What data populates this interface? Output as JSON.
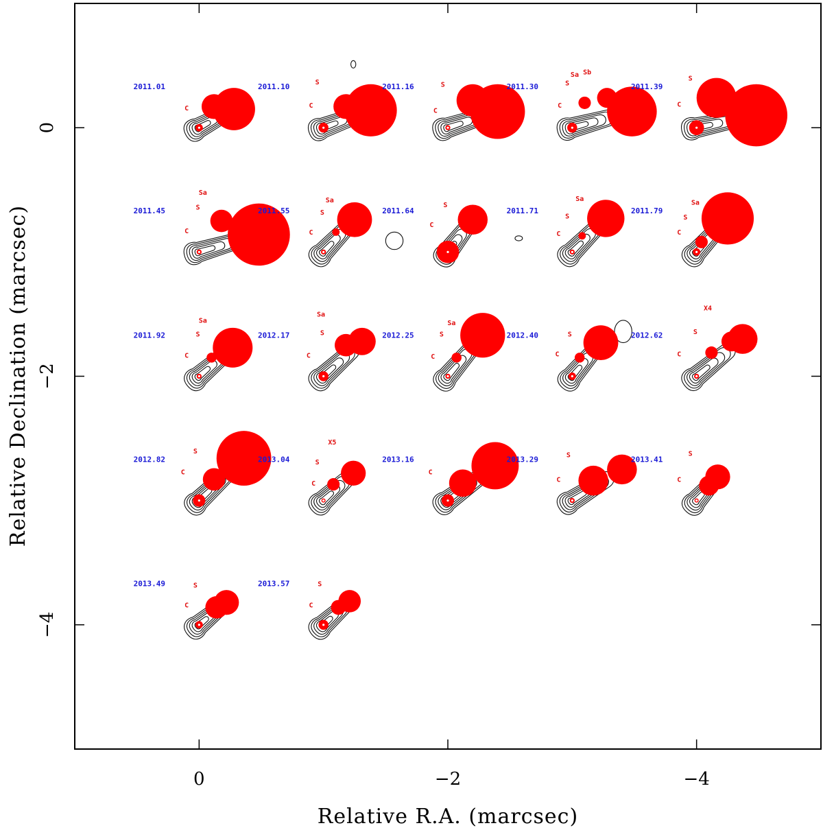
{
  "chart_data": {
    "type": "scatter",
    "title": "",
    "xlabel": "Relative R.A. (marcsec)",
    "ylabel": "Relative Declination (marcsec)",
    "xlim": [
      1.0,
      -5.0
    ],
    "ylim": [
      -5.0,
      1.0
    ],
    "xticks": [
      0,
      -2,
      -4
    ],
    "xtick_labels": [
      "0",
      "−2",
      "−4"
    ],
    "yticks": [
      0,
      -2,
      -4
    ],
    "ytick_labels": [
      "0",
      "−2",
      "−4"
    ],
    "grid": false,
    "contour_color": "#111111",
    "component_color": "#ff0000",
    "epoch_label_color": "#1a1ad6",
    "component_label_color": "#e01010",
    "epochs": [
      {
        "epoch": "2011.01",
        "x0": 0.0,
        "y0": 0.0,
        "components": [
          {
            "x": 0.0,
            "y": 0.0,
            "r": 0.03
          },
          {
            "x": -0.12,
            "y": 0.17,
            "r": 0.1
          },
          {
            "x": -0.28,
            "y": 0.15,
            "r": 0.17
          }
        ],
        "labels": [
          {
            "text": "C",
            "x": 0.1,
            "y": 0.14
          }
        ],
        "blobs": []
      },
      {
        "epoch": "2011.10",
        "x0": -1.0,
        "y0": 0.0,
        "components": [
          {
            "x": -1.0,
            "y": 0.0,
            "r": 0.04
          },
          {
            "x": -1.18,
            "y": 0.17,
            "r": 0.1
          },
          {
            "x": -1.38,
            "y": 0.14,
            "r": 0.21
          }
        ],
        "labels": [
          {
            "text": "S",
            "x": -0.95,
            "y": 0.35
          },
          {
            "text": "C",
            "x": -0.9,
            "y": 0.16
          }
        ],
        "blobs": [
          {
            "x": -1.24,
            "y": 0.51,
            "rx": 0.02,
            "ry": 0.03
          }
        ]
      },
      {
        "epoch": "2011.16",
        "x0": -2.0,
        "y0": 0.0,
        "components": [
          {
            "x": -2.0,
            "y": 0.0,
            "r": 0.02
          },
          {
            "x": -2.2,
            "y": 0.22,
            "r": 0.13
          },
          {
            "x": -2.4,
            "y": 0.13,
            "r": 0.22
          }
        ],
        "labels": [
          {
            "text": "S",
            "x": -1.96,
            "y": 0.33
          },
          {
            "text": "C",
            "x": -1.9,
            "y": 0.12
          }
        ],
        "blobs": []
      },
      {
        "epoch": "2011.30",
        "x0": -3.0,
        "y0": 0.0,
        "components": [
          {
            "x": -3.0,
            "y": 0.0,
            "r": 0.04
          },
          {
            "x": -3.1,
            "y": 0.2,
            "r": 0.05
          },
          {
            "x": -3.28,
            "y": 0.24,
            "r": 0.08
          },
          {
            "x": -3.48,
            "y": 0.13,
            "r": 0.2
          }
        ],
        "labels": [
          {
            "text": "Sa",
            "x": -3.02,
            "y": 0.41
          },
          {
            "text": "Sb",
            "x": -3.12,
            "y": 0.43
          },
          {
            "text": "S",
            "x": -2.96,
            "y": 0.34
          },
          {
            "text": "C",
            "x": -2.9,
            "y": 0.16
          }
        ],
        "blobs": []
      },
      {
        "epoch": "2011.39",
        "x0": -4.0,
        "y0": 0.0,
        "components": [
          {
            "x": -4.0,
            "y": 0.0,
            "r": 0.06
          },
          {
            "x": -4.16,
            "y": 0.24,
            "r": 0.16
          },
          {
            "x": -4.48,
            "y": 0.1,
            "r": 0.25
          }
        ],
        "labels": [
          {
            "text": "S",
            "x": -3.95,
            "y": 0.38
          },
          {
            "text": "C",
            "x": -3.86,
            "y": 0.17
          }
        ],
        "blobs": []
      },
      {
        "epoch": "2011.45",
        "x0": 0.0,
        "y0": -1.0,
        "components": [
          {
            "x": 0.0,
            "y": -1.0,
            "r": 0.02
          },
          {
            "x": -0.18,
            "y": -0.75,
            "r": 0.09
          },
          {
            "x": -0.48,
            "y": -0.86,
            "r": 0.25
          }
        ],
        "labels": [
          {
            "text": "Sa",
            "x": -0.03,
            "y": -0.54
          },
          {
            "text": "S",
            "x": 0.01,
            "y": -0.66
          },
          {
            "text": "C",
            "x": 0.1,
            "y": -0.85
          }
        ],
        "blobs": []
      },
      {
        "epoch": "2011.55",
        "x0": -1.0,
        "y0": -1.0,
        "components": [
          {
            "x": -1.0,
            "y": -1.0,
            "r": 0.02
          },
          {
            "x": -1.1,
            "y": -0.84,
            "r": 0.03
          },
          {
            "x": -1.25,
            "y": -0.74,
            "r": 0.14
          }
        ],
        "labels": [
          {
            "text": "Sa",
            "x": -1.05,
            "y": -0.6
          },
          {
            "text": "S",
            "x": -0.99,
            "y": -0.7
          },
          {
            "text": "C",
            "x": -0.9,
            "y": -0.86
          }
        ],
        "blobs": [
          {
            "x": -1.57,
            "y": -0.91,
            "rx": 0.07,
            "ry": 0.07
          }
        ]
      },
      {
        "epoch": "2011.64",
        "x0": -2.0,
        "y0": -1.0,
        "components": [
          {
            "x": -2.0,
            "y": -1.0,
            "r": 0.09
          },
          {
            "x": -2.2,
            "y": -0.74,
            "r": 0.12
          }
        ],
        "labels": [
          {
            "text": "S",
            "x": -1.98,
            "y": -0.64
          },
          {
            "text": "C",
            "x": -1.87,
            "y": -0.8
          }
        ],
        "blobs": [
          {
            "x": -2.57,
            "y": -0.89,
            "rx": 0.03,
            "ry": 0.02
          }
        ]
      },
      {
        "epoch": "2011.71",
        "x0": -3.0,
        "y0": -1.0,
        "components": [
          {
            "x": -3.0,
            "y": -1.0,
            "r": 0.02
          },
          {
            "x": -3.08,
            "y": -0.87,
            "r": 0.03
          },
          {
            "x": -3.27,
            "y": -0.73,
            "r": 0.15
          }
        ],
        "labels": [
          {
            "text": "Sa",
            "x": -3.06,
            "y": -0.59
          },
          {
            "text": "S",
            "x": -2.96,
            "y": -0.73
          },
          {
            "text": "C",
            "x": -2.89,
            "y": -0.87
          }
        ],
        "blobs": []
      },
      {
        "epoch": "2011.79",
        "x0": -4.0,
        "y0": -1.0,
        "components": [
          {
            "x": -4.0,
            "y": -1.0,
            "r": 0.03
          },
          {
            "x": -4.04,
            "y": -0.92,
            "r": 0.05
          },
          {
            "x": -4.25,
            "y": -0.73,
            "r": 0.21
          }
        ],
        "labels": [
          {
            "text": "Sa",
            "x": -3.99,
            "y": -0.62
          },
          {
            "text": "S",
            "x": -3.91,
            "y": -0.74
          },
          {
            "text": "C",
            "x": -3.86,
            "y": -0.86
          }
        ],
        "blobs": []
      },
      {
        "epoch": "2011.92",
        "x0": 0.0,
        "y0": -2.0,
        "components": [
          {
            "x": 0.0,
            "y": -2.0,
            "r": 0.02
          },
          {
            "x": -0.1,
            "y": -1.85,
            "r": 0.04
          },
          {
            "x": -0.27,
            "y": -1.77,
            "r": 0.16
          }
        ],
        "labels": [
          {
            "text": "Sa",
            "x": -0.03,
            "y": -1.57
          },
          {
            "text": "S",
            "x": 0.01,
            "y": -1.68
          },
          {
            "text": "C",
            "x": 0.1,
            "y": -1.85
          }
        ],
        "blobs": []
      },
      {
        "epoch": "2012.17",
        "x0": -1.0,
        "y0": -2.0,
        "components": [
          {
            "x": -1.0,
            "y": -2.0,
            "r": 0.04
          },
          {
            "x": -1.18,
            "y": -1.75,
            "r": 0.09
          },
          {
            "x": -1.31,
            "y": -1.72,
            "r": 0.11
          }
        ],
        "labels": [
          {
            "text": "Sa",
            "x": -0.98,
            "y": -1.52
          },
          {
            "text": "S",
            "x": -0.99,
            "y": -1.67
          },
          {
            "text": "C",
            "x": -0.88,
            "y": -1.85
          }
        ],
        "blobs": []
      },
      {
        "epoch": "2012.25",
        "x0": -2.0,
        "y0": -2.0,
        "components": [
          {
            "x": -2.0,
            "y": -2.0,
            "r": 0.02
          },
          {
            "x": -2.07,
            "y": -1.85,
            "r": 0.04
          },
          {
            "x": -2.28,
            "y": -1.67,
            "r": 0.18
          }
        ],
        "labels": [
          {
            "text": "Sa",
            "x": -2.03,
            "y": -1.59
          },
          {
            "text": "S",
            "x": -1.95,
            "y": -1.68
          },
          {
            "text": "C",
            "x": -1.88,
            "y": -1.86
          }
        ],
        "blobs": []
      },
      {
        "epoch": "2012.40",
        "x0": -3.0,
        "y0": -2.0,
        "components": [
          {
            "x": -3.0,
            "y": -2.0,
            "r": 0.03
          },
          {
            "x": -3.06,
            "y": -1.85,
            "r": 0.04
          },
          {
            "x": -3.23,
            "y": -1.73,
            "r": 0.14
          }
        ],
        "labels": [
          {
            "text": "S",
            "x": -2.98,
            "y": -1.68
          },
          {
            "text": "C",
            "x": -2.88,
            "y": -1.84
          }
        ],
        "blobs": [
          {
            "x": -3.41,
            "y": -1.64,
            "rx": 0.07,
            "ry": 0.09
          }
        ]
      },
      {
        "epoch": "2012.62",
        "x0": -4.0,
        "y0": -2.0,
        "components": [
          {
            "x": -4.0,
            "y": -2.0,
            "r": 0.02
          },
          {
            "x": -4.12,
            "y": -1.81,
            "r": 0.05
          },
          {
            "x": -4.28,
            "y": -1.72,
            "r": 0.08
          },
          {
            "x": -4.37,
            "y": -1.7,
            "r": 0.12
          }
        ],
        "labels": [
          {
            "text": "X4",
            "x": -4.09,
            "y": -1.47
          },
          {
            "text": "S",
            "x": -3.99,
            "y": -1.66
          },
          {
            "text": "C",
            "x": -3.86,
            "y": -1.84
          }
        ],
        "blobs": []
      },
      {
        "epoch": "2012.82",
        "x0": 0.0,
        "y0": -3.0,
        "components": [
          {
            "x": 0.0,
            "y": -3.0,
            "r": 0.05
          },
          {
            "x": -0.12,
            "y": -2.83,
            "r": 0.09
          },
          {
            "x": -0.36,
            "y": -2.66,
            "r": 0.22
          }
        ],
        "labels": [
          {
            "text": "S",
            "x": 0.03,
            "y": -2.62
          },
          {
            "text": "C",
            "x": 0.13,
            "y": -2.79
          }
        ],
        "blobs": []
      },
      {
        "epoch": "2013.04",
        "x0": -1.0,
        "y0": -3.0,
        "components": [
          {
            "x": -1.0,
            "y": -3.0,
            "r": 0.01
          },
          {
            "x": -1.08,
            "y": -2.87,
            "r": 0.05
          },
          {
            "x": -1.24,
            "y": -2.78,
            "r": 0.1
          }
        ],
        "labels": [
          {
            "text": "X5",
            "x": -1.07,
            "y": -2.55
          },
          {
            "text": "S",
            "x": -0.95,
            "y": -2.71
          },
          {
            "text": "C",
            "x": -0.92,
            "y": -2.88
          }
        ],
        "blobs": []
      },
      {
        "epoch": "2013.16",
        "x0": -2.0,
        "y0": -3.0,
        "components": [
          {
            "x": -2.0,
            "y": -3.0,
            "r": 0.05
          },
          {
            "x": -2.12,
            "y": -2.86,
            "r": 0.11
          },
          {
            "x": -2.38,
            "y": -2.72,
            "r": 0.19
          }
        ],
        "labels": [
          {
            "text": "C",
            "x": -1.86,
            "y": -2.79
          }
        ],
        "blobs": []
      },
      {
        "epoch": "2013.29",
        "x0": -3.0,
        "y0": -3.0,
        "components": [
          {
            "x": -3.0,
            "y": -3.0,
            "r": 0.02
          },
          {
            "x": -3.17,
            "y": -2.84,
            "r": 0.12
          },
          {
            "x": -3.4,
            "y": -2.75,
            "r": 0.12
          }
        ],
        "labels": [
          {
            "text": "S",
            "x": -2.97,
            "y": -2.65
          },
          {
            "text": "C",
            "x": -2.89,
            "y": -2.85
          }
        ],
        "blobs": []
      },
      {
        "epoch": "2013.41",
        "x0": -4.0,
        "y0": -3.0,
        "components": [
          {
            "x": -4.0,
            "y": -3.0,
            "r": 0.01
          },
          {
            "x": -4.1,
            "y": -2.88,
            "r": 0.08
          },
          {
            "x": -4.17,
            "y": -2.81,
            "r": 0.1
          }
        ],
        "labels": [
          {
            "text": "S",
            "x": -3.95,
            "y": -2.64
          },
          {
            "text": "C",
            "x": -3.86,
            "y": -2.85
          }
        ],
        "blobs": []
      },
      {
        "epoch": "2013.49",
        "x0": 0.0,
        "y0": -4.0,
        "components": [
          {
            "x": 0.0,
            "y": -4.0,
            "r": 0.03
          },
          {
            "x": -0.14,
            "y": -3.86,
            "r": 0.09
          },
          {
            "x": -0.22,
            "y": -3.82,
            "r": 0.1
          }
        ],
        "labels": [
          {
            "text": "S",
            "x": 0.03,
            "y": -3.7
          },
          {
            "text": "C",
            "x": 0.1,
            "y": -3.86
          }
        ],
        "blobs": []
      },
      {
        "epoch": "2013.57",
        "x0": -1.0,
        "y0": -4.0,
        "components": [
          {
            "x": -1.0,
            "y": -4.0,
            "r": 0.04
          },
          {
            "x": -1.12,
            "y": -3.86,
            "r": 0.06
          },
          {
            "x": -1.21,
            "y": -3.81,
            "r": 0.09
          }
        ],
        "labels": [
          {
            "text": "S",
            "x": -0.97,
            "y": -3.69
          },
          {
            "text": "C",
            "x": -0.9,
            "y": -3.86
          }
        ],
        "blobs": []
      }
    ]
  }
}
